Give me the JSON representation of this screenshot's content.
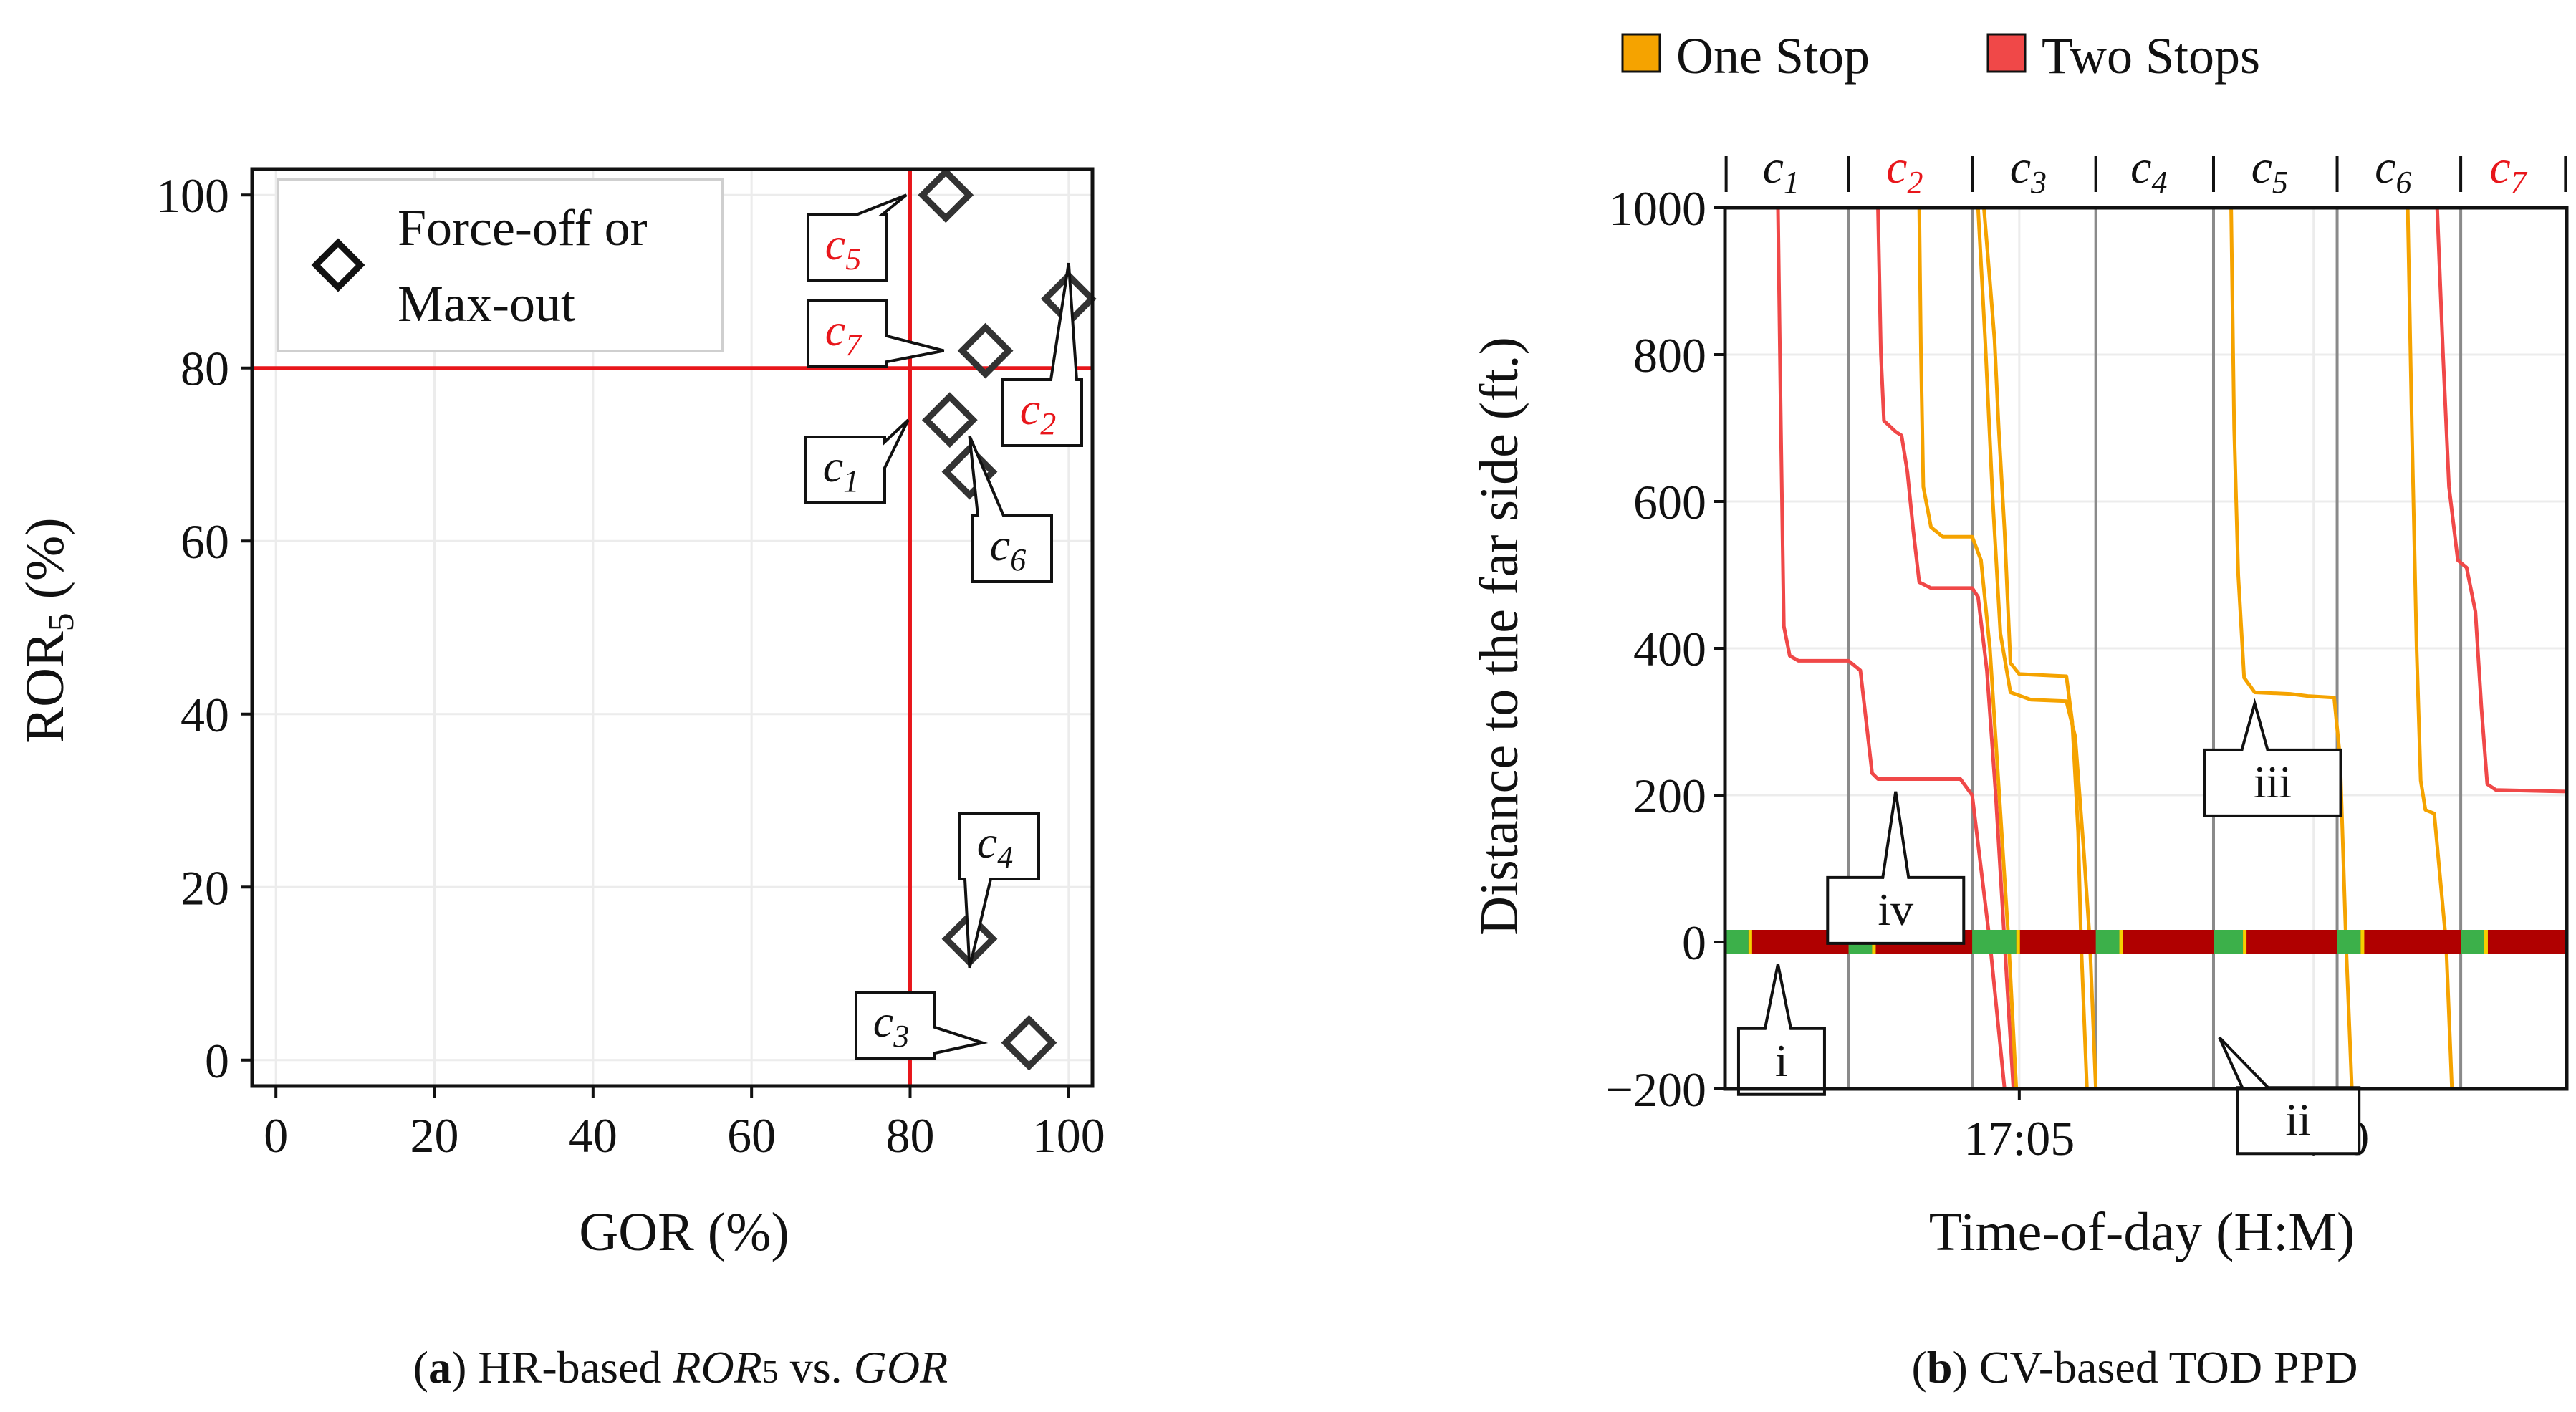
{
  "chart_data": [
    {
      "type": "scatter",
      "panel": "a",
      "caption": {
        "bold": "a",
        "prefix": ") HR-based ",
        "ror": "ROR",
        "sub": "5",
        "mid": " vs. ",
        "gor": "GOR"
      },
      "xlabel": "GOR (%)",
      "ylabel": {
        "main": "ROR",
        "sub": "5",
        "tail": " (%)"
      },
      "xlim": [
        -3,
        103
      ],
      "ylim": [
        -3,
        103
      ],
      "xticks": [
        "0",
        "20",
        "40",
        "60",
        "80",
        "100"
      ],
      "yticks": [
        "0",
        "20",
        "40",
        "60",
        "80",
        "100"
      ],
      "grid": true,
      "legend": {
        "placement": "upper-left",
        "line1": "Force-off or",
        "line2": "Max-out"
      },
      "threshold_x": 80,
      "threshold_y": 80,
      "threshold_color": "#e8161b",
      "points": [
        {
          "id": "c",
          "sub": "1",
          "x": 85,
          "y": 74,
          "red": false
        },
        {
          "id": "c",
          "sub": "2",
          "x": 100,
          "y": 88,
          "red": true
        },
        {
          "id": "c",
          "sub": "3",
          "x": 95,
          "y": 2,
          "red": false
        },
        {
          "id": "c",
          "sub": "4",
          "x": 87.5,
          "y": 14,
          "red": false
        },
        {
          "id": "c",
          "sub": "5",
          "x": 84.5,
          "y": 100,
          "red": true
        },
        {
          "id": "c",
          "sub": "6",
          "x": 87.5,
          "y": 68,
          "red": false
        },
        {
          "id": "c",
          "sub": "7",
          "x": 89.5,
          "y": 82,
          "red": true
        }
      ]
    },
    {
      "type": "line",
      "panel": "b",
      "caption": {
        "bold": "b",
        "rest": ") CV-based TOD PPD"
      },
      "xlabel": "Time-of-day (H:M)",
      "ylabel": "Distance to the far side (ft.)",
      "xlim_minutes": [
        1020.0,
        1034.3
      ],
      "ylim": [
        -200,
        1000
      ],
      "xticks": [
        {
          "label": "17:05",
          "minute": 1025
        },
        {
          "label": "17:10",
          "minute": 1030
        }
      ],
      "yticks": [
        "−200",
        "0",
        "200",
        "400",
        "600",
        "800",
        "1000"
      ],
      "grid": true,
      "legend": [
        {
          "name": "One Stop",
          "color": "#f5a300"
        },
        {
          "name": "Two Stops",
          "color": "#f04848"
        }
      ],
      "cycle_boundaries_minutes": [
        1022.1,
        1024.2,
        1026.3,
        1028.3,
        1030.4,
        1032.5
      ],
      "cycles": [
        {
          "id": "c",
          "sub": "1",
          "red": false
        },
        {
          "id": "c",
          "sub": "2",
          "red": true
        },
        {
          "id": "c",
          "sub": "3",
          "red": false
        },
        {
          "id": "c",
          "sub": "4",
          "red": false
        },
        {
          "id": "c",
          "sub": "5",
          "red": false
        },
        {
          "id": "c",
          "sub": "6",
          "red": false
        },
        {
          "id": "c",
          "sub": "7",
          "red": true
        }
      ],
      "signal_bar": {
        "red_color": "#b00000",
        "green_color": "#3cb04a",
        "green_intervals_minutes": [
          [
            1020.0,
            1020.4
          ],
          [
            1022.1,
            1022.5
          ],
          [
            1024.2,
            1024.95
          ],
          [
            1026.3,
            1026.7
          ],
          [
            1028.3,
            1028.8
          ],
          [
            1030.4,
            1030.8
          ],
          [
            1032.5,
            1032.9
          ]
        ]
      },
      "series": [
        {
          "name": "Two Stops",
          "color": "#f04848",
          "points": [
            [
              1020.9,
              1000
            ],
            [
              1020.95,
              700
            ],
            [
              1021.0,
              430
            ],
            [
              1021.1,
              390
            ],
            [
              1021.25,
              383
            ],
            [
              1022.1,
              383
            ],
            [
              1022.3,
              370
            ],
            [
              1022.4,
              300
            ],
            [
              1022.5,
              230
            ],
            [
              1022.6,
              222
            ],
            [
              1023.5,
              222
            ],
            [
              1024.0,
              222
            ],
            [
              1024.2,
              200
            ],
            [
              1024.5,
              0
            ],
            [
              1024.75,
              -200
            ]
          ]
        },
        {
          "name": "Two Stops",
          "color": "#f04848",
          "points": [
            [
              1022.6,
              1000
            ],
            [
              1022.65,
              800
            ],
            [
              1022.7,
              710
            ],
            [
              1022.9,
              695
            ],
            [
              1023.0,
              690
            ],
            [
              1023.1,
              640
            ],
            [
              1023.2,
              560
            ],
            [
              1023.3,
              490
            ],
            [
              1023.5,
              482
            ],
            [
              1024.2,
              482
            ],
            [
              1024.3,
              470
            ],
            [
              1024.45,
              370
            ],
            [
              1024.6,
              200
            ],
            [
              1024.75,
              0
            ],
            [
              1024.9,
              -200
            ]
          ]
        },
        {
          "name": "Two Stops",
          "color": "#f04848",
          "points": [
            [
              1032.1,
              1000
            ],
            [
              1032.2,
              800
            ],
            [
              1032.3,
              620
            ],
            [
              1032.45,
              520
            ],
            [
              1032.6,
              510
            ],
            [
              1032.75,
              450
            ],
            [
              1032.85,
              320
            ],
            [
              1032.95,
              215
            ],
            [
              1033.1,
              207
            ],
            [
              1034.3,
              205
            ]
          ]
        },
        {
          "name": "One Stop",
          "color": "#f5a300",
          "points": [
            [
              1023.3,
              1000
            ],
            [
              1023.33,
              800
            ],
            [
              1023.37,
              620
            ],
            [
              1023.5,
              565
            ],
            [
              1023.7,
              552
            ],
            [
              1024.2,
              552
            ],
            [
              1024.35,
              520
            ],
            [
              1024.5,
              400
            ],
            [
              1024.7,
              150
            ],
            [
              1024.82,
              0
            ],
            [
              1024.95,
              -200
            ]
          ]
        },
        {
          "name": "One Stop",
          "color": "#f5a300",
          "points": [
            [
              1024.4,
              1000
            ],
            [
              1024.5,
              900
            ],
            [
              1024.58,
              820
            ],
            [
              1024.65,
              700
            ],
            [
              1024.75,
              560
            ],
            [
              1024.85,
              380
            ],
            [
              1025.0,
              365
            ],
            [
              1025.5,
              363
            ],
            [
              1025.8,
              362
            ],
            [
              1025.9,
              300
            ],
            [
              1026.0,
              150
            ],
            [
              1026.05,
              0
            ],
            [
              1026.15,
              -200
            ]
          ]
        },
        {
          "name": "One Stop",
          "color": "#f5a300",
          "points": [
            [
              1024.3,
              1000
            ],
            [
              1024.42,
              820
            ],
            [
              1024.55,
              600
            ],
            [
              1024.68,
              420
            ],
            [
              1024.85,
              340
            ],
            [
              1025.2,
              330
            ],
            [
              1025.8,
              328
            ],
            [
              1025.95,
              280
            ],
            [
              1026.1,
              120
            ],
            [
              1026.2,
              0
            ],
            [
              1026.3,
              -200
            ]
          ]
        },
        {
          "name": "One Stop",
          "color": "#f5a300",
          "points": [
            [
              1028.6,
              1000
            ],
            [
              1028.65,
              700
            ],
            [
              1028.72,
              500
            ],
            [
              1028.82,
              360
            ],
            [
              1029.0,
              340
            ],
            [
              1029.6,
              338
            ],
            [
              1029.9,
              335
            ],
            [
              1030.35,
              333
            ],
            [
              1030.45,
              250
            ],
            [
              1030.55,
              0
            ],
            [
              1030.65,
              -200
            ]
          ]
        },
        {
          "name": "One Stop",
          "color": "#f5a300",
          "points": [
            [
              1031.6,
              1000
            ],
            [
              1031.67,
              700
            ],
            [
              1031.75,
              400
            ],
            [
              1031.82,
              220
            ],
            [
              1031.9,
              180
            ],
            [
              1032.05,
              175
            ],
            [
              1032.25,
              0
            ],
            [
              1032.35,
              -200
            ]
          ]
        }
      ],
      "annotations": [
        {
          "label": "i",
          "minute": 1020.9,
          "value": -30
        },
        {
          "label": "ii",
          "minute": 1028.4,
          "value": -130
        },
        {
          "label": "iii",
          "minute": 1029.0,
          "value": 325
        },
        {
          "label": "iv",
          "minute": 1022.9,
          "value": 205
        }
      ]
    }
  ]
}
